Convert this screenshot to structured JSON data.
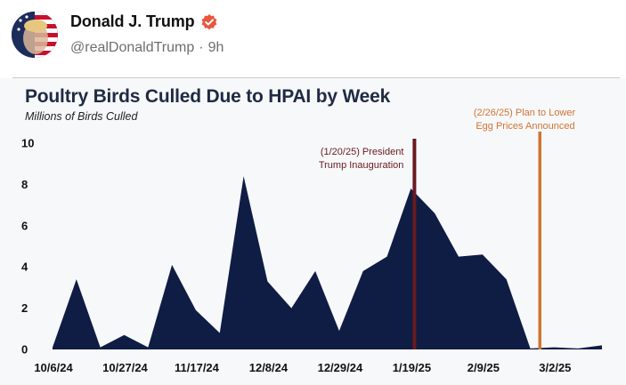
{
  "post": {
    "display_name": "Donald J. Trump",
    "handle": "@realDonaldTrump",
    "separator": "·",
    "time_ago": "9h",
    "verified": true
  },
  "icons": {
    "verified": "verified-badge-icon",
    "avatar": "profile-avatar"
  },
  "colors": {
    "area_fill": "#0f1d45",
    "inauguration_line": "#6b1a1f",
    "plan_line": "#d07434",
    "verified_badge": "#e8573f",
    "title": "#1f2a44"
  },
  "chart_data": {
    "type": "area",
    "title": "Poultry Birds Culled Due to HPAI by Week",
    "subtitle": "Millions of Birds Culled",
    "xlabel": "",
    "ylabel": "",
    "ylim": [
      0,
      10
    ],
    "yticks": [
      0,
      2,
      4,
      6,
      8,
      10
    ],
    "x_start": "10/6/24",
    "x_tick_labels": [
      "10/6/24",
      "10/27/24",
      "11/17/24",
      "12/8/24",
      "12/29/24",
      "1/19/25",
      "2/9/25",
      "3/2/25"
    ],
    "x_tick_week_index": [
      0,
      3,
      6,
      9,
      12,
      15,
      18,
      21
    ],
    "weeks": 24,
    "values": [
      0.1,
      3.4,
      0.1,
      0.7,
      0.1,
      4.1,
      1.9,
      0.8,
      8.4,
      3.3,
      2.0,
      3.8,
      0.9,
      3.8,
      4.5,
      7.8,
      6.6,
      4.5,
      4.6,
      3.4,
      0.05,
      0.1,
      0.05,
      0.2
    ],
    "annotations": [
      {
        "label_line1": "(1/20/25) President",
        "label_line2": "Trump Inauguration",
        "week_index": 15.15,
        "color": "#6b1a1f"
      },
      {
        "label_line1": "(2/26/25)  Plan to Lower",
        "label_line2": "Egg Prices Announced",
        "week_index": 20.4,
        "color": "#d07434"
      }
    ],
    "grid": false,
    "legend": "none"
  }
}
